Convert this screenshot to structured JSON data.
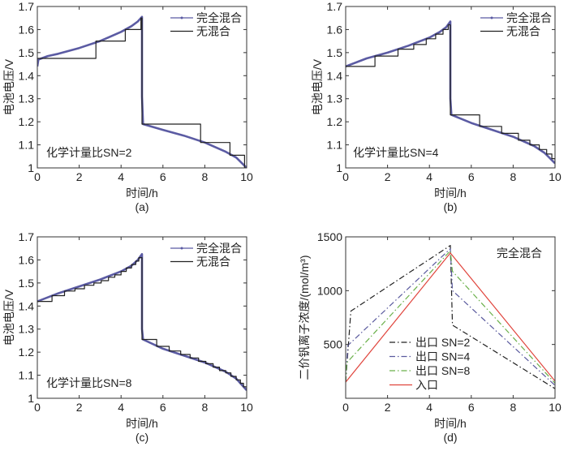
{
  "chart_data": [
    {
      "type": "line",
      "panel_label": "(a)",
      "annotation": "化学计量比SN=2",
      "xlabel": "时间/h",
      "ylabel": "电池电压/V",
      "xlim": [
        0,
        10
      ],
      "ylim": [
        1.0,
        1.7
      ],
      "xticks": [
        "0",
        "2",
        "4",
        "6",
        "8",
        "10"
      ],
      "yticks": [
        "1",
        "1.1",
        "1.2",
        "1.3",
        "1.4",
        "1.5",
        "1.6",
        "1.7"
      ],
      "legend": [
        "完全混合",
        "无混合"
      ],
      "legend_position": "top-right",
      "series": [
        {
          "name": "完全混合",
          "color": "#5b5ba3",
          "x": [
            0,
            0.05,
            0.5,
            1,
            2,
            3,
            4,
            4.5,
            4.8,
            5,
            5,
            5.05,
            6,
            7,
            8,
            9,
            9.5,
            10
          ],
          "y": [
            1.44,
            1.47,
            1.485,
            1.495,
            1.52,
            1.55,
            1.59,
            1.615,
            1.635,
            1.655,
            1.31,
            1.19,
            1.165,
            1.14,
            1.11,
            1.07,
            1.045,
            1.0
          ]
        },
        {
          "name": "无混合",
          "color": "#222222",
          "step": true,
          "x": [
            0,
            2.8,
            4.2,
            4.95,
            5,
            7.8,
            9.2,
            9.9,
            10
          ],
          "y": [
            1.475,
            1.55,
            1.6,
            1.65,
            1.19,
            1.11,
            1.055,
            1.0,
            1.0
          ]
        }
      ]
    },
    {
      "type": "line",
      "panel_label": "(b)",
      "annotation": "化学计量比SN=4",
      "xlabel": "时间/h",
      "ylabel": "电池电压/V",
      "xlim": [
        0,
        10
      ],
      "ylim": [
        1.0,
        1.7
      ],
      "xticks": [
        "0",
        "2",
        "4",
        "6",
        "8",
        "10"
      ],
      "yticks": [
        "1",
        "1.1",
        "1.2",
        "1.3",
        "1.4",
        "1.5",
        "1.6",
        "1.7"
      ],
      "legend": [
        "完全混合",
        "无混合"
      ],
      "legend_position": "top-right",
      "series": [
        {
          "name": "完全混合",
          "color": "#5b5ba3",
          "x": [
            0,
            1,
            2,
            3,
            4,
            4.5,
            4.8,
            5,
            5,
            5.05,
            6,
            7,
            8,
            9,
            9.5,
            10
          ],
          "y": [
            1.44,
            1.475,
            1.5,
            1.53,
            1.565,
            1.59,
            1.61,
            1.635,
            1.3,
            1.23,
            1.195,
            1.165,
            1.135,
            1.095,
            1.065,
            1.02
          ]
        },
        {
          "name": "无混合",
          "color": "#222222",
          "step": true,
          "x": [
            0,
            1.4,
            2.5,
            3.25,
            3.85,
            4.3,
            4.65,
            4.9,
            5,
            6.4,
            7.45,
            8.25,
            8.8,
            9.25,
            9.6,
            9.85,
            10
          ],
          "y": [
            1.44,
            1.485,
            1.515,
            1.535,
            1.56,
            1.58,
            1.6,
            1.62,
            1.23,
            1.18,
            1.15,
            1.12,
            1.1,
            1.08,
            1.06,
            1.04,
            1.02
          ]
        }
      ]
    },
    {
      "type": "line",
      "panel_label": "(c)",
      "annotation": "化学计量比SN=8",
      "xlabel": "时间/h",
      "ylabel": "电池电压/V",
      "xlim": [
        0,
        10
      ],
      "ylim": [
        1.0,
        1.7
      ],
      "xticks": [
        "0",
        "2",
        "4",
        "6",
        "8",
        "10"
      ],
      "yticks": [
        "1",
        "1.1",
        "1.2",
        "1.3",
        "1.4",
        "1.5",
        "1.6",
        "1.7"
      ],
      "legend": [
        "完全混合",
        "无混合"
      ],
      "legend_position": "top-right",
      "series": [
        {
          "name": "完全混合",
          "color": "#5b5ba3",
          "x": [
            0,
            1,
            2,
            3,
            4,
            4.5,
            4.8,
            5,
            5,
            5.05,
            6,
            7,
            8,
            9,
            9.5,
            10
          ],
          "y": [
            1.42,
            1.455,
            1.485,
            1.515,
            1.55,
            1.575,
            1.6,
            1.625,
            1.3,
            1.255,
            1.215,
            1.185,
            1.155,
            1.115,
            1.085,
            1.035
          ]
        },
        {
          "name": "无混合",
          "color": "#222222",
          "step": true,
          "x": [
            0,
            0.7,
            1.3,
            1.8,
            2.25,
            2.7,
            3.05,
            3.4,
            3.7,
            4.0,
            4.25,
            4.5,
            4.7,
            4.85,
            5,
            5.7,
            6.3,
            6.85,
            7.3,
            7.7,
            8.05,
            8.4,
            8.7,
            9.0,
            9.25,
            9.5,
            9.7,
            9.85,
            10
          ],
          "y": [
            1.42,
            1.445,
            1.465,
            1.475,
            1.49,
            1.5,
            1.51,
            1.525,
            1.535,
            1.55,
            1.565,
            1.58,
            1.595,
            1.61,
            1.255,
            1.225,
            1.205,
            1.19,
            1.175,
            1.16,
            1.15,
            1.135,
            1.12,
            1.11,
            1.095,
            1.08,
            1.065,
            1.05,
            1.035
          ]
        }
      ]
    },
    {
      "type": "line",
      "panel_label": "(d)",
      "annotation": "完全混合",
      "xlabel": "时间/h",
      "ylabel": "二价钒离子浓度/(mol/m³)",
      "xlim": [
        0,
        10
      ],
      "ylim": [
        0,
        1500
      ],
      "xticks": [
        "0",
        "2",
        "4",
        "6",
        "8",
        "10"
      ],
      "yticks": [
        "500",
        "1000",
        "1500"
      ],
      "legend": [
        "出口  SN=2",
        "出口  SN=4",
        "出口  SN=8",
        "入口"
      ],
      "legend_position": "bottom-left",
      "series": [
        {
          "name": "出口  SN=2",
          "color": "#222222",
          "dash": "dashdot",
          "x": [
            0,
            0.25,
            5,
            5.1,
            10
          ],
          "y": [
            150,
            810,
            1420,
            680,
            90
          ]
        },
        {
          "name": "出口  SN=4",
          "color": "#5a5a9e",
          "dash": "dashdot",
          "x": [
            0,
            0.1,
            5,
            5.1,
            10
          ],
          "y": [
            150,
            490,
            1390,
            1000,
            120
          ]
        },
        {
          "name": "出口  SN=8",
          "color": "#6ab04a",
          "dash": "dashdot",
          "x": [
            0,
            0.05,
            5,
            5.1,
            10
          ],
          "y": [
            150,
            330,
            1370,
            1180,
            140
          ]
        },
        {
          "name": "入口",
          "color": "#e0443c",
          "dash": "solid",
          "x": [
            0,
            5,
            10
          ],
          "y": [
            150,
            1350,
            160
          ]
        }
      ]
    }
  ]
}
